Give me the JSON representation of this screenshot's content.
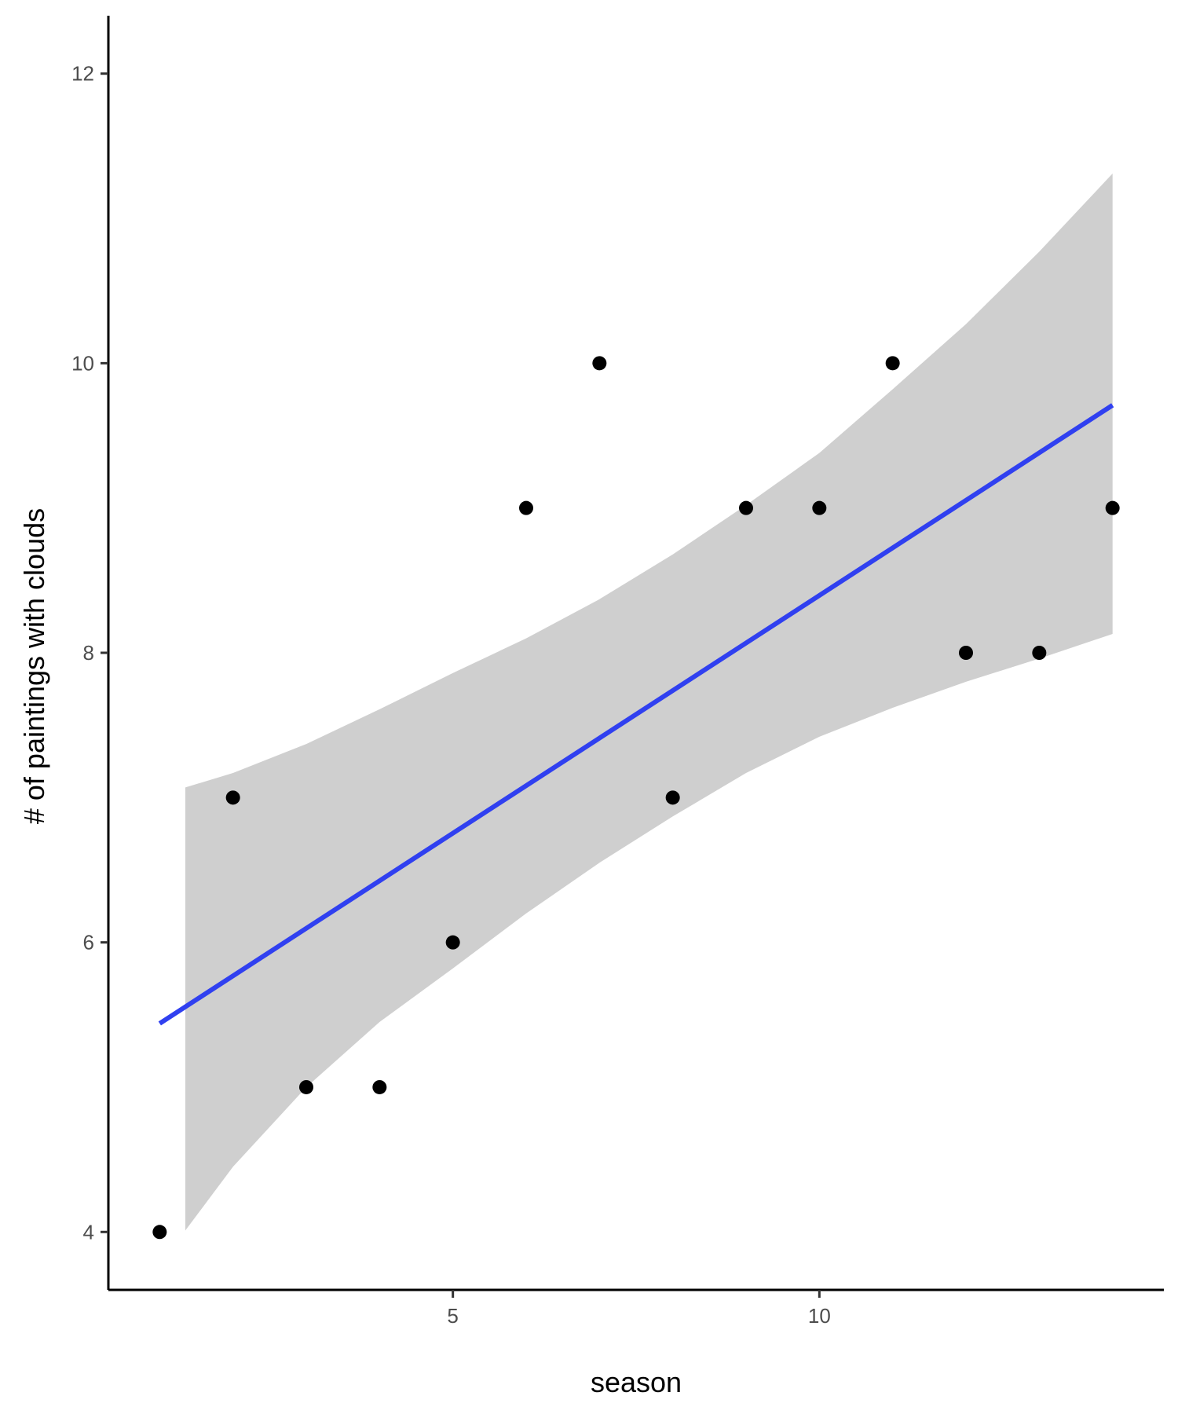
{
  "chart_data": {
    "type": "scatter",
    "title": "",
    "xlabel": "season",
    "ylabel": "# of paintings with clouds",
    "xlim": [
      0.3,
      14.7
    ],
    "ylim": [
      3.6,
      12.4
    ],
    "x_ticks": [
      5,
      10
    ],
    "y_ticks": [
      4,
      6,
      8,
      10,
      12
    ],
    "grid": false,
    "legend": "none",
    "points": {
      "x": [
        1,
        2,
        3,
        4,
        5,
        6,
        7,
        8,
        9,
        10,
        11,
        12,
        13,
        14
      ],
      "y": [
        4,
        7,
        5,
        5,
        6,
        9,
        10,
        7,
        9,
        9,
        10,
        8,
        8,
        9
      ]
    },
    "fit": {
      "method": "lm",
      "x": [
        1,
        14
      ],
      "y": [
        5.44,
        9.71
      ]
    },
    "confidence_band": {
      "x": [
        1.35,
        2,
        3,
        4,
        5,
        6,
        7,
        8,
        9,
        10,
        11,
        12,
        13,
        14
      ],
      "lower": [
        4.01,
        4.45,
        5.0,
        5.45,
        5.82,
        6.2,
        6.55,
        6.87,
        7.17,
        7.42,
        7.62,
        7.8,
        7.96,
        8.13
      ],
      "upper": [
        7.07,
        7.17,
        7.37,
        7.61,
        7.86,
        8.1,
        8.37,
        8.68,
        9.02,
        9.38,
        9.82,
        10.27,
        10.77,
        11.31
      ]
    },
    "colors": {
      "points": "#000000",
      "fit_line": "#3040f0",
      "band": "#cfcfcf",
      "axis": "#000000",
      "tick_label": "#4d4d4d"
    }
  }
}
